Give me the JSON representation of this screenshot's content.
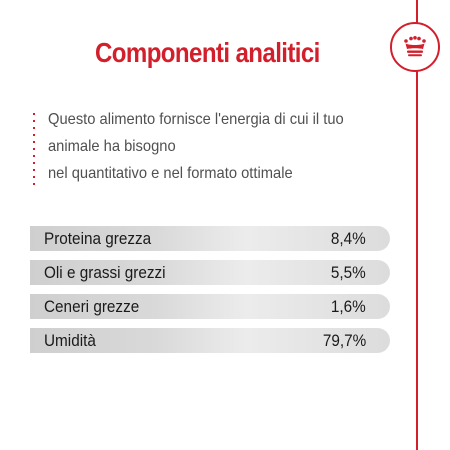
{
  "title": "Componenti analitici",
  "brand": {
    "icon": "crown-icon",
    "accent_color": "#d21f2b"
  },
  "description": {
    "lines": [
      "Questo alimento fornisce l'energia di cui il tuo",
      "animale ha bisogno",
      "nel quantitativo e nel formato ottimale"
    ]
  },
  "components": [
    {
      "label": "Proteina grezza",
      "value": "8,4%"
    },
    {
      "label": "Oli e grassi grezzi",
      "value": "5,5%"
    },
    {
      "label": "Ceneri grezze",
      "value": "1,6%"
    },
    {
      "label": "Umidità",
      "value": "79,7%"
    }
  ]
}
